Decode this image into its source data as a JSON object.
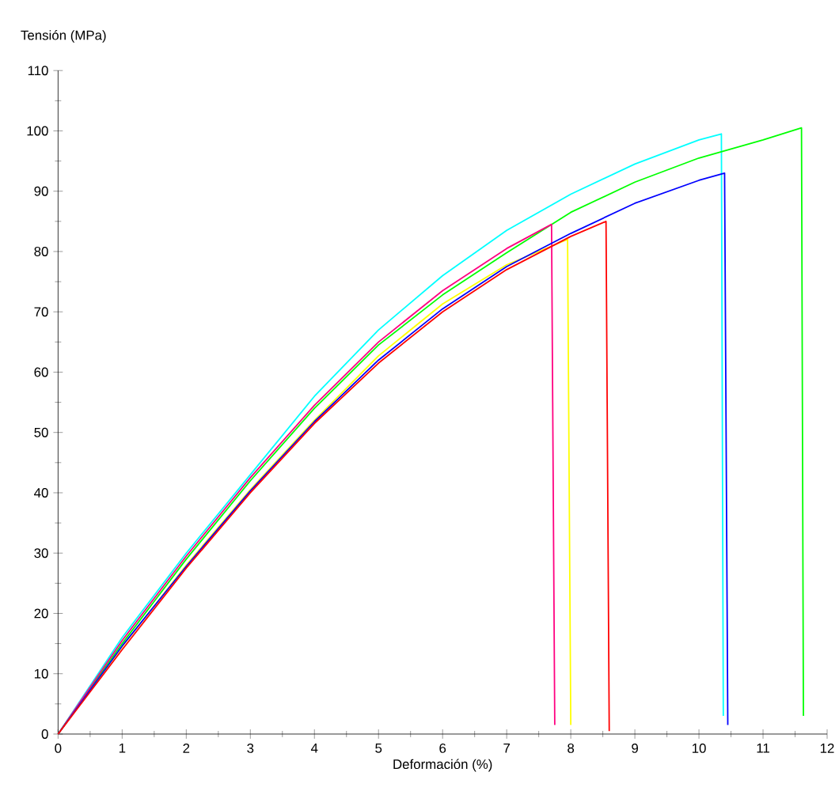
{
  "chart_data": {
    "type": "line",
    "xlabel": "Deformación (%)",
    "ylabel": "Tensión (MPa)",
    "xlim": [
      0,
      12
    ],
    "ylim": [
      0,
      110
    ],
    "xticks": [
      0,
      1,
      2,
      3,
      4,
      5,
      6,
      7,
      8,
      9,
      10,
      11,
      12
    ],
    "yticks": [
      0,
      10,
      20,
      30,
      40,
      50,
      60,
      70,
      80,
      90,
      100,
      110
    ],
    "marker": "none",
    "line_style": "solid",
    "series": [
      {
        "color": "#00ffff",
        "x": [
          0,
          1,
          2,
          3,
          4,
          5,
          6,
          7,
          8,
          9,
          10,
          10.35,
          10.38
        ],
        "values": [
          0,
          16,
          30,
          43,
          56,
          67,
          76,
          83.5,
          89.5,
          94.5,
          98.5,
          99.5,
          3
        ]
      },
      {
        "color": "#00ff00",
        "x": [
          0,
          1,
          2,
          3,
          4,
          5,
          6,
          7,
          8,
          9,
          10,
          11,
          11.6,
          11.63
        ],
        "values": [
          0,
          15,
          29,
          42,
          54,
          64.5,
          72.8,
          79.8,
          86.5,
          91.5,
          95.5,
          98.5,
          100.5,
          3
        ]
      },
      {
        "color": "#ff0080",
        "x": [
          0,
          1,
          2,
          3,
          4,
          5,
          6,
          7,
          7.7,
          7.75
        ],
        "values": [
          0,
          15.5,
          29.5,
          42.5,
          54.5,
          65,
          73.5,
          80.5,
          84.5,
          1.5
        ]
      },
      {
        "color": "#ffff00",
        "x": [
          0,
          1,
          2,
          3,
          4,
          5,
          6,
          7,
          7.95,
          8.0
        ],
        "values": [
          0,
          14.5,
          28,
          40.5,
          52,
          62.7,
          71.3,
          77.8,
          82,
          1.5
        ]
      },
      {
        "color": "#0000ff",
        "x": [
          0,
          1,
          2,
          3,
          4,
          5,
          6,
          7,
          8,
          9,
          10,
          10.4,
          10.45
        ],
        "values": [
          0,
          14.6,
          27.8,
          40.3,
          51.8,
          62,
          70.5,
          77.5,
          83,
          88,
          91.8,
          93,
          1.5
        ]
      },
      {
        "color": "#ff0000",
        "x": [
          0,
          1,
          2,
          3,
          4,
          5,
          6,
          7,
          8,
          8.55,
          8.6
        ],
        "values": [
          0,
          14,
          27.5,
          40,
          51.5,
          61.5,
          70,
          77,
          82.5,
          85,
          0.5
        ]
      }
    ]
  }
}
